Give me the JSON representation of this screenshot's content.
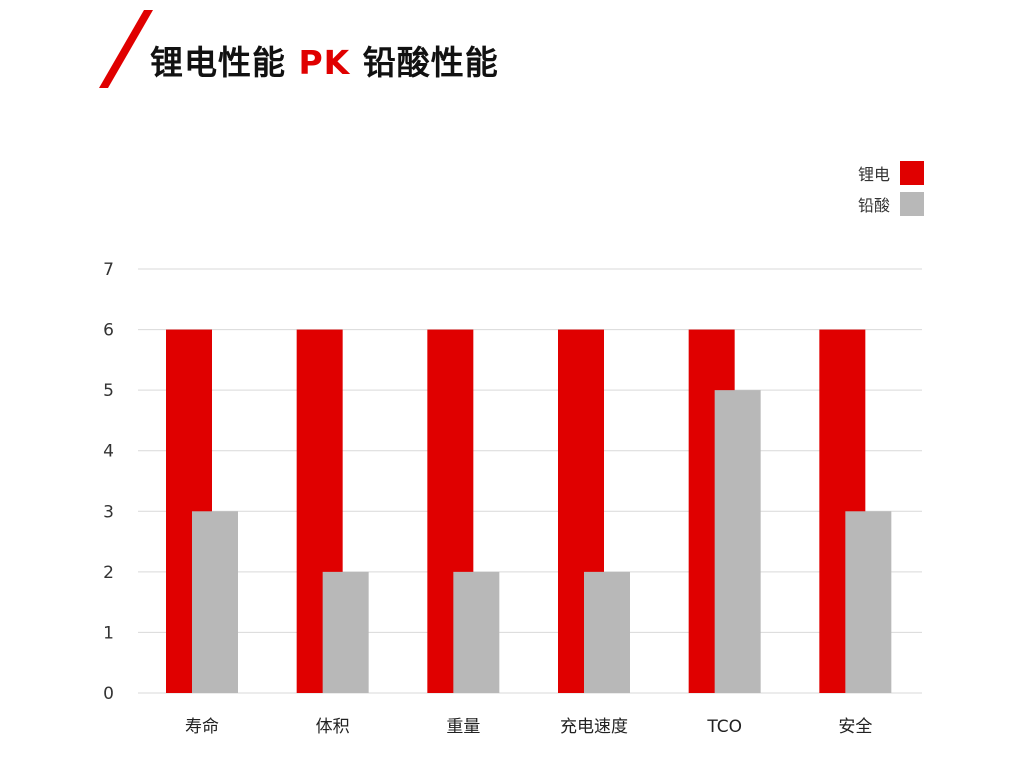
{
  "title": {
    "prefix": "锂电性能 ",
    "accent": "PK",
    "suffix": " 铅酸性能"
  },
  "colors": {
    "accent": "#e00000",
    "series_lithium": "#e00000",
    "series_lead_acid": "#b8b8b8",
    "grid": "#d9d9d9"
  },
  "chart_data": {
    "type": "bar",
    "title": "锂电性能 PK 铅酸性能",
    "xlabel": "",
    "ylabel": "",
    "categories": [
      "寿命",
      "体积",
      "重量",
      "充电速度",
      "TCO",
      "安全"
    ],
    "series": [
      {
        "name": "锂电",
        "color": "#e00000",
        "values": [
          6,
          6,
          6,
          6,
          6,
          6
        ]
      },
      {
        "name": "铅酸",
        "color": "#b8b8b8",
        "values": [
          3,
          2,
          2,
          2,
          5,
          3
        ]
      }
    ],
    "ylim": [
      0,
      7
    ],
    "yticks": [
      "0",
      "1",
      "2",
      "3",
      "4",
      "5",
      "6",
      "7"
    ],
    "grid": true,
    "legend_position": "top-right"
  }
}
